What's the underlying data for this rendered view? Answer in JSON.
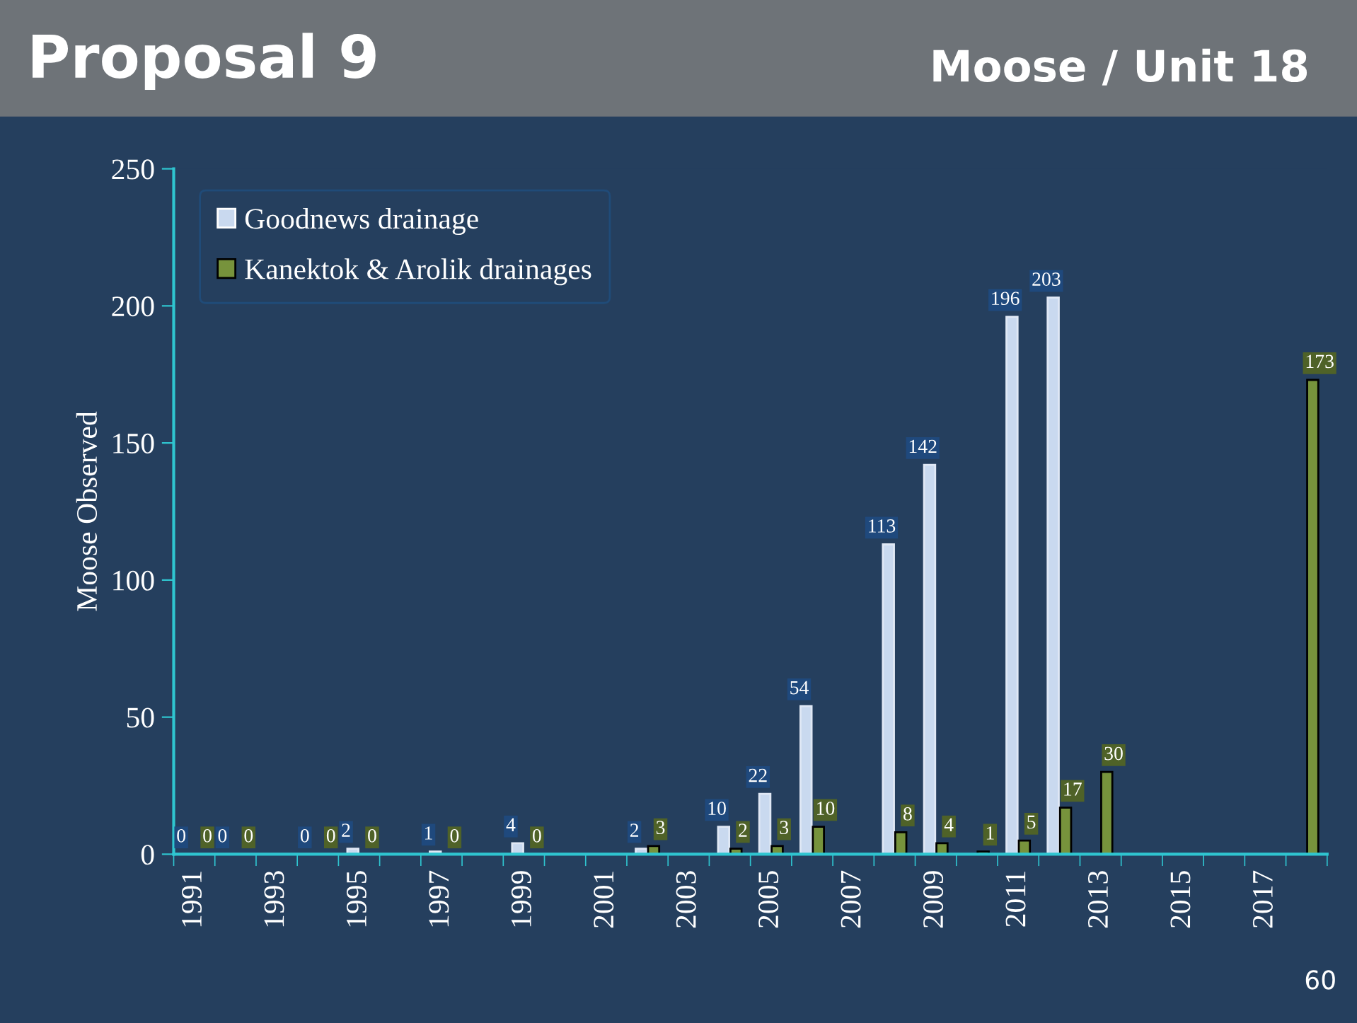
{
  "chart_data": {
    "type": "bar",
    "title": "Proposal 9",
    "subtitle": "Moose / Unit 18",
    "ylabel": "Moose Observed",
    "categories": [
      "1991",
      null,
      "1993",
      null,
      "1995",
      null,
      "1997",
      null,
      "1999",
      null,
      "2001",
      null,
      "2003",
      null,
      "2005",
      null,
      "2007",
      null,
      "2009",
      null,
      "2011",
      null,
      "2013",
      null,
      "2015",
      null,
      "2017",
      null
    ],
    "series": [
      {
        "name": "Goodnews drainage",
        "color": "#c9d9ef",
        "values": [
          0,
          0,
          null,
          0,
          2,
          null,
          1,
          null,
          4,
          null,
          null,
          2,
          null,
          10,
          22,
          54,
          null,
          113,
          142,
          null,
          196,
          203,
          null,
          null,
          null,
          null,
          null,
          null
        ]
      },
      {
        "name": "Kanektok & Arolik drainages",
        "color": "#77933c",
        "values": [
          0,
          0,
          null,
          0,
          0,
          null,
          0,
          null,
          0,
          null,
          null,
          3,
          null,
          2,
          3,
          10,
          null,
          8,
          4,
          1,
          5,
          17,
          30,
          null,
          null,
          null,
          null,
          173
        ]
      }
    ],
    "ylim": [
      0,
      250
    ],
    "yticks": [
      0,
      50,
      100,
      150,
      200,
      250
    ],
    "grid": false,
    "legend": "top left",
    "data_labels": true,
    "annotations": [
      "60"
    ]
  }
}
